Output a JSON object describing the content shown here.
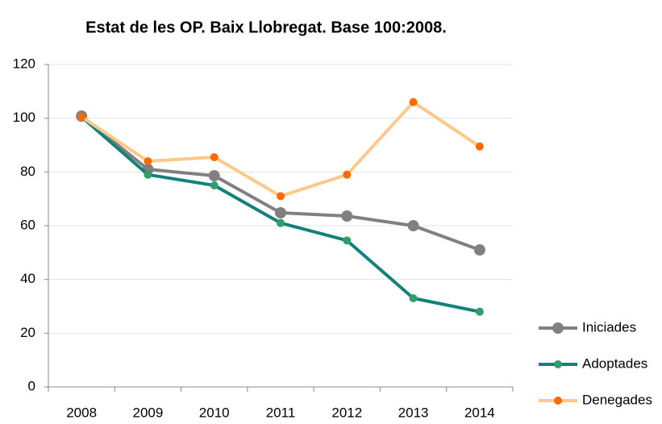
{
  "chart_data": {
    "type": "line",
    "title": "Estat de les OP. Baix Llobregat. Base 100:2008.",
    "categories": [
      "2008",
      "2009",
      "2010",
      "2011",
      "2012",
      "2013",
      "2014"
    ],
    "series": [
      {
        "name": "Iniciades",
        "color": "#808080",
        "marker_color": "#808080",
        "values": [
          100.8,
          81,
          78.6,
          64.8,
          63.6,
          60,
          51
        ]
      },
      {
        "name": "Adoptades",
        "color": "#138079",
        "marker_color": "#2e9e6a",
        "values": [
          100.5,
          79,
          75,
          61,
          54.5,
          33,
          28
        ]
      },
      {
        "name": "Denegades",
        "color": "#fcc98a",
        "marker_color": "#ff6a00",
        "values": [
          100.5,
          84,
          85.5,
          71,
          79,
          106,
          89.5
        ]
      }
    ],
    "ylim": [
      0,
      120
    ],
    "yticks": [
      0,
      20,
      40,
      60,
      80,
      100,
      120
    ],
    "grid": true,
    "legend": "bottom-right"
  }
}
